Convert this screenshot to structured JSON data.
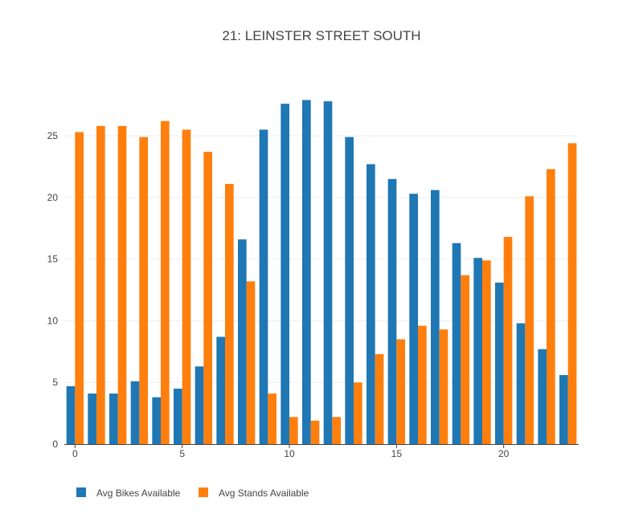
{
  "chart_data": {
    "type": "bar",
    "title": "21: LEINSTER STREET SOUTH",
    "xlabel": "",
    "ylabel": "",
    "x": [
      0,
      1,
      2,
      3,
      4,
      5,
      6,
      7,
      8,
      9,
      10,
      11,
      12,
      13,
      14,
      15,
      16,
      17,
      18,
      19,
      20,
      21,
      22,
      23
    ],
    "x_ticks": [
      0,
      5,
      10,
      15,
      20
    ],
    "y_ticks": [
      0,
      5,
      10,
      15,
      20,
      25
    ],
    "xlim": [
      -0.5,
      23.5
    ],
    "ylim": [
      0,
      29.5
    ],
    "grid": true,
    "legend_position": "bottom-left",
    "series": [
      {
        "name": "Avg Bikes Available",
        "color": "#1f77b4",
        "values": [
          4.7,
          4.1,
          4.1,
          5.1,
          3.8,
          4.5,
          6.3,
          8.7,
          16.6,
          25.5,
          27.6,
          27.9,
          27.8,
          24.9,
          22.7,
          21.5,
          20.3,
          20.6,
          16.3,
          15.1,
          13.1,
          9.8,
          7.7,
          5.6
        ]
      },
      {
        "name": "Avg Stands Available",
        "color": "#ff7f0e",
        "values": [
          25.3,
          25.8,
          25.8,
          24.9,
          26.2,
          25.5,
          23.7,
          21.1,
          13.2,
          4.1,
          2.2,
          1.9,
          2.2,
          5.0,
          7.3,
          8.5,
          9.6,
          9.3,
          13.7,
          14.9,
          16.8,
          20.1,
          22.3,
          24.4
        ]
      }
    ]
  }
}
